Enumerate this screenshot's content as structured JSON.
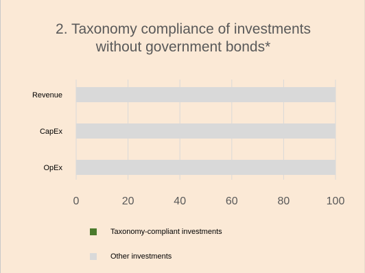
{
  "chart_data": {
    "type": "bar",
    "orientation": "horizontal",
    "stacked": true,
    "title_lines": [
      "2. Taxonomy compliance of investments",
      "without government bonds*"
    ],
    "categories": [
      "Revenue",
      "CapEx",
      "OpEx"
    ],
    "series": [
      {
        "name": "Taxonomy-compliant investments",
        "values": [
          0,
          0,
          0
        ],
        "color": "#4a7a2c"
      },
      {
        "name": "Other investments",
        "values": [
          100,
          100,
          100
        ],
        "color": "#d9d9d9"
      }
    ],
    "xlim": [
      0,
      100
    ],
    "xticks": [
      0,
      20,
      40,
      60,
      80,
      100
    ],
    "grid": true,
    "legend_position": "bottom"
  }
}
